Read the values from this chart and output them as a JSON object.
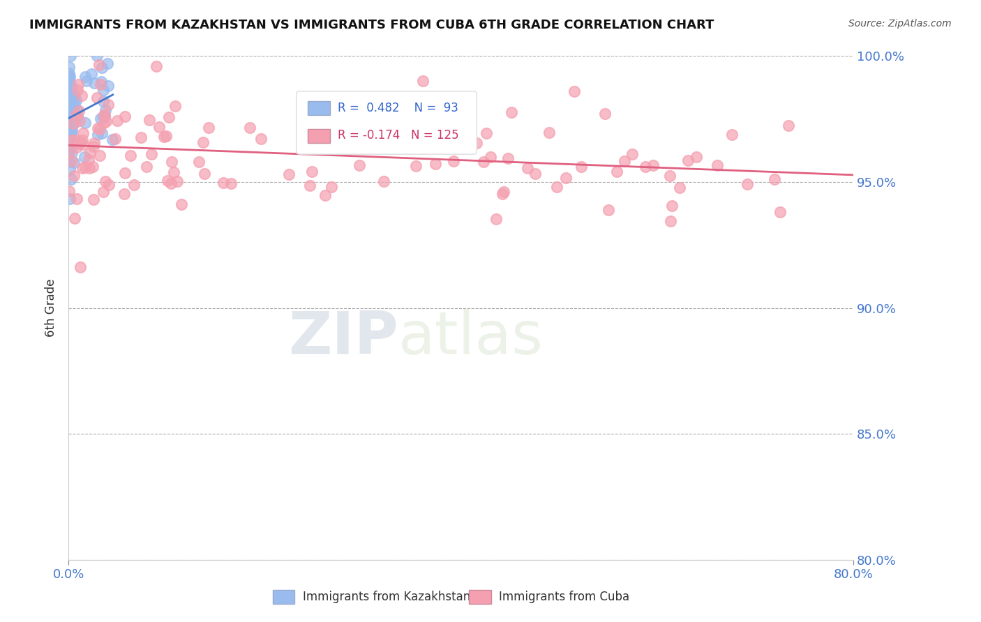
{
  "title": "IMMIGRANTS FROM KAZAKHSTAN VS IMMIGRANTS FROM CUBA 6TH GRADE CORRELATION CHART",
  "source": "Source: ZipAtlas.com",
  "xlabel_kaz": "Immigrants from Kazakhstan",
  "xlabel_cuba": "Immigrants from Cuba",
  "ylabel": "6th Grade",
  "xlim": [
    0.0,
    80.0
  ],
  "ylim": [
    80.0,
    100.0
  ],
  "yticks": [
    80.0,
    85.0,
    90.0,
    95.0,
    100.0
  ],
  "xticks": [
    0.0,
    80.0
  ],
  "kaz_R": 0.482,
  "kaz_N": 93,
  "cuba_R": -0.174,
  "cuba_N": 125,
  "kaz_color": "#99bbee",
  "cuba_color": "#f4a0b0",
  "kaz_line_color": "#4477cc",
  "cuba_line_color": "#e06080",
  "watermark_zip": "ZIP",
  "watermark_atlas": "atlas",
  "background_color": "#ffffff"
}
